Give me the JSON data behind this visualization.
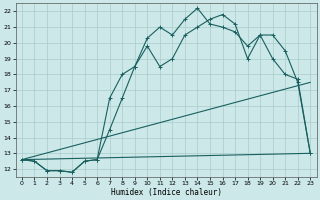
{
  "xlabel": "Humidex (Indice chaleur)",
  "bg_color": "#cce8e8",
  "grid_color": "#aacccc",
  "line_color": "#1a5f5f",
  "xlim": [
    -0.5,
    23.5
  ],
  "ylim": [
    11.5,
    22.5
  ],
  "xticks": [
    0,
    1,
    2,
    3,
    4,
    5,
    6,
    7,
    8,
    9,
    10,
    11,
    12,
    13,
    14,
    15,
    16,
    17,
    18,
    19,
    20,
    21,
    22,
    23
  ],
  "yticks": [
    12,
    13,
    14,
    15,
    16,
    17,
    18,
    19,
    20,
    21,
    22
  ],
  "curve1_x": [
    0,
    1,
    2,
    3,
    4,
    5,
    6,
    7,
    8,
    9,
    10,
    11,
    12,
    13,
    14,
    15,
    16,
    17,
    18,
    19,
    20,
    21,
    22,
    23
  ],
  "curve1_y": [
    12.6,
    12.5,
    11.9,
    11.9,
    11.8,
    12.5,
    12.6,
    16.5,
    18.0,
    18.5,
    20.3,
    21.0,
    20.5,
    21.5,
    22.2,
    21.2,
    21.0,
    20.7,
    19.8,
    20.5,
    19.0,
    18.0,
    17.7,
    13.0
  ],
  "curve2_x": [
    0,
    1,
    2,
    3,
    4,
    5,
    6,
    7,
    8,
    9,
    10,
    11,
    12,
    13,
    14,
    15,
    16,
    17,
    18,
    19,
    20,
    21,
    22,
    23
  ],
  "curve2_y": [
    12.6,
    12.5,
    11.9,
    11.9,
    11.8,
    12.5,
    12.6,
    14.5,
    16.5,
    18.5,
    19.8,
    18.5,
    19.0,
    20.5,
    21.0,
    21.5,
    21.8,
    21.2,
    19.0,
    20.5,
    20.5,
    19.5,
    17.5,
    13.0
  ],
  "line3_x": [
    0,
    23
  ],
  "line3_y": [
    12.6,
    17.5
  ],
  "line4_x": [
    0,
    23
  ],
  "line4_y": [
    12.6,
    13.0
  ]
}
